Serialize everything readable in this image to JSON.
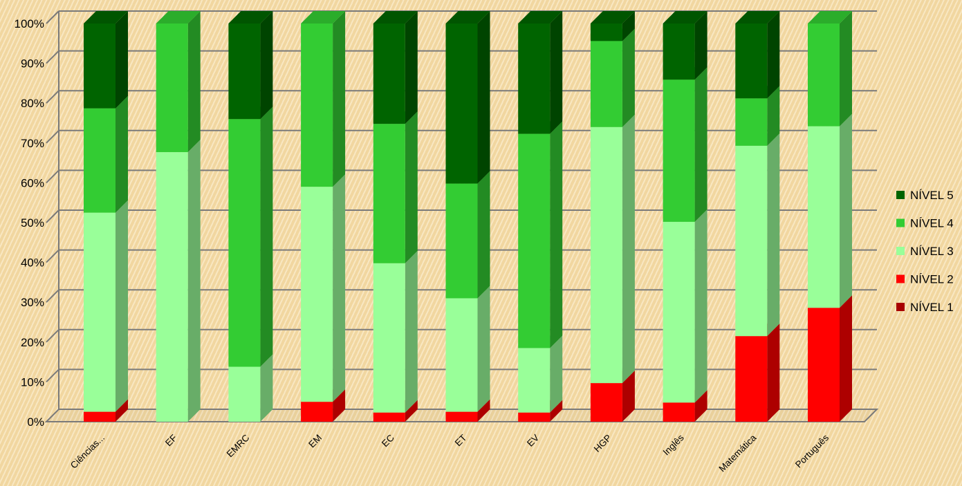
{
  "chart_data": {
    "type": "bar",
    "stacked": true,
    "percent": true,
    "three_d": true,
    "categories": [
      "Ciências...",
      "EF",
      "EMRC",
      "EM",
      "EC",
      "ET",
      "EV",
      "HGP",
      "Inglês",
      "Matemática",
      "Português"
    ],
    "series": [
      {
        "name": "NÍVEL 1",
        "color": "#a80000",
        "values": [
          0,
          0,
          0,
          0,
          0,
          0,
          0,
          0,
          0,
          0,
          0
        ]
      },
      {
        "name": "NÍVEL 2",
        "color": "#ff0000",
        "values": [
          2.5,
          0,
          0,
          5,
          2.3,
          2.5,
          2.3,
          9.7,
          4.8,
          21.5,
          28.6
        ]
      },
      {
        "name": "NÍVEL 3",
        "color": "#99ff99",
        "values": [
          50,
          67.7,
          13.8,
          54,
          37.5,
          28.5,
          16.2,
          64.3,
          45.4,
          47.8,
          45.6
        ]
      },
      {
        "name": "NÍVEL 4",
        "color": "#33cc33",
        "values": [
          26.2,
          32.3,
          62.2,
          41,
          35,
          28.8,
          53.8,
          21.6,
          35.7,
          11.9,
          25.8
        ]
      },
      {
        "name": "NÍVEL 5",
        "color": "#006400",
        "values": [
          21.3,
          0,
          24,
          0,
          25.2,
          40.2,
          27.7,
          4.4,
          14.1,
          18.8,
          0
        ]
      }
    ],
    "yticks": [
      "0%",
      "10%",
      "20%",
      "30%",
      "40%",
      "50%",
      "60%",
      "70%",
      "80%",
      "90%",
      "100%"
    ],
    "ylim": [
      0,
      100
    ],
    "grid": true,
    "legend_position": "right",
    "legend_order": [
      "NÍVEL 5",
      "NÍVEL 4",
      "NÍVEL 3",
      "NÍVEL 2",
      "NÍVEL 1"
    ],
    "title": "",
    "xlabel": "",
    "ylabel": ""
  }
}
